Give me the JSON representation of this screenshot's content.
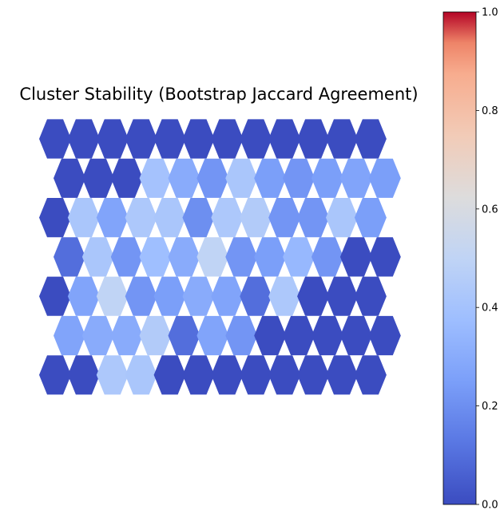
{
  "chart_data": {
    "type": "heatmap",
    "subtype": "hexbin",
    "title": "Cluster Stability (Bootstrap Jaccard Agreement)",
    "colormap": "coolwarm",
    "vmin": 0.0,
    "vmax": 1.0,
    "colorbar": {
      "ticks": [
        0.0,
        0.2,
        0.4,
        0.6,
        0.8,
        1.0
      ],
      "tick_labels": [
        "0.0",
        "0.2",
        "0.4",
        "0.6",
        "0.8",
        "1.0"
      ],
      "placement": "right"
    },
    "rows": 7,
    "cols": 12,
    "grid": false,
    "values": [
      [
        0.0,
        0.0,
        0.0,
        0.0,
        0.0,
        0.0,
        0.0,
        0.0,
        0.0,
        0.0,
        0.0,
        0.0
      ],
      [
        0.0,
        0.0,
        0.0,
        0.4,
        0.3,
        0.22,
        0.42,
        0.25,
        0.22,
        0.25,
        0.27,
        0.25
      ],
      [
        0.0,
        0.42,
        0.27,
        0.43,
        0.42,
        0.2,
        0.43,
        0.45,
        0.22,
        0.22,
        0.42,
        0.25
      ],
      [
        0.1,
        0.42,
        0.22,
        0.38,
        0.3,
        0.5,
        0.22,
        0.25,
        0.35,
        0.22,
        0.0,
        0.0
      ],
      [
        0.0,
        0.27,
        0.5,
        0.22,
        0.25,
        0.3,
        0.27,
        0.1,
        0.43,
        0.0,
        0.0,
        0.0
      ],
      [
        0.27,
        0.3,
        0.3,
        0.45,
        0.1,
        0.27,
        0.22,
        0.0,
        0.0,
        0.0,
        0.0,
        0.0
      ],
      [
        0.0,
        0.0,
        0.43,
        0.42,
        0.0,
        0.0,
        0.0,
        0.0,
        0.0,
        0.0,
        0.0,
        0.0
      ]
    ]
  }
}
